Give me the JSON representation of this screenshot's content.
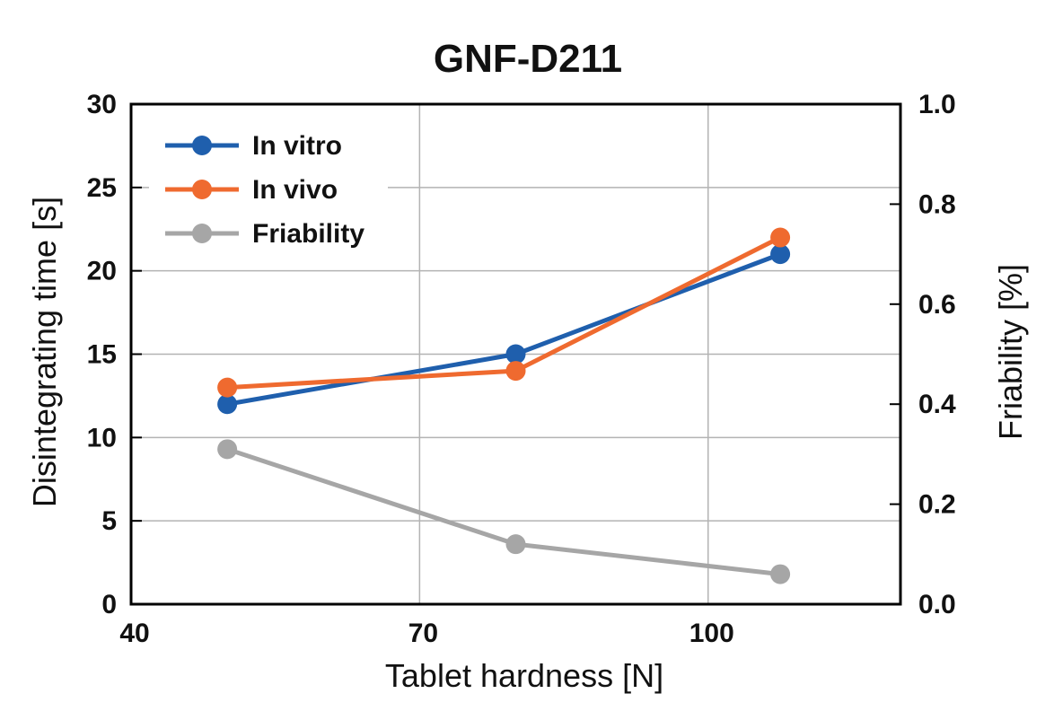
{
  "chart_data": {
    "type": "line",
    "title": "GNF-D211",
    "xlabel": "Tablet hardness [N]",
    "ylabel": "Disintegrating time [s]",
    "y2label": "Friability [%]",
    "xlim": [
      40,
      120
    ],
    "ylim": [
      0,
      30
    ],
    "y2lim": [
      0.0,
      1.0
    ],
    "x_ticks": [
      "40",
      "70",
      "100"
    ],
    "y_ticks": [
      "0",
      "5",
      "10",
      "15",
      "20",
      "25",
      "30"
    ],
    "y2_ticks": [
      "0.0",
      "0.2",
      "0.4",
      "0.6",
      "0.8",
      "1.0"
    ],
    "grid": true,
    "legend_position": "top-left",
    "series": [
      {
        "name": "In vitro",
        "axis": "left",
        "color": "#1f5fad",
        "x": [
          50,
          80,
          107.5
        ],
        "values": [
          12,
          15,
          21
        ]
      },
      {
        "name": "In vivo",
        "axis": "left",
        "color": "#ef6a2f",
        "x": [
          50,
          80,
          107.5
        ],
        "values": [
          13,
          14,
          22
        ]
      },
      {
        "name": "Friability",
        "axis": "right",
        "color": "#a6a6a6",
        "x": [
          50,
          80,
          107.5
        ],
        "values": [
          0.31,
          0.12,
          0.06
        ]
      }
    ]
  }
}
